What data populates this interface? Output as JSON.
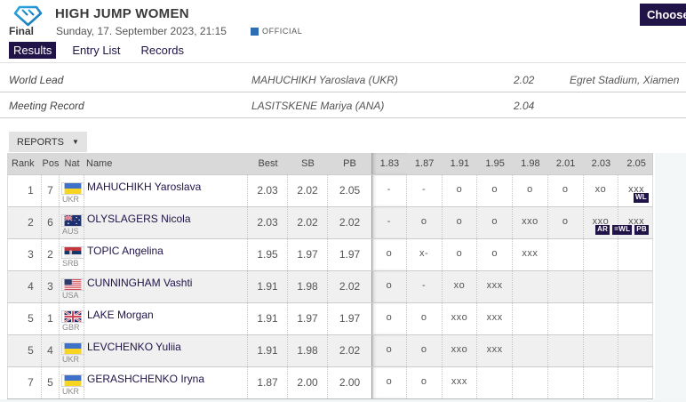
{
  "colors": {
    "brand_navy": "#201347",
    "official_blue": "#2e6db4",
    "logo_blue_light": "#2aa9e0",
    "logo_blue_dark": "#1d71b8"
  },
  "header": {
    "title": "HIGH JUMP WOMEN",
    "round": "Final",
    "datetime": "Sunday, 17. September 2023, 21:15",
    "official_label": "OFFICIAL",
    "choose_button": "Choose",
    "tabs": [
      {
        "label": "Results",
        "active": true
      },
      {
        "label": "Entry List",
        "active": false
      },
      {
        "label": "Records",
        "active": false
      }
    ]
  },
  "records": [
    {
      "label": "World Lead",
      "athlete": "MAHUCHIKH Yaroslava (UKR)",
      "mark": "2.02",
      "venue": "Egret Stadium, Xiamen"
    },
    {
      "label": "Meeting Record",
      "athlete": "LASITSKENE Mariya (ANA)",
      "mark": "2.04",
      "venue": ""
    }
  ],
  "reports": {
    "label": "REPORTS"
  },
  "table": {
    "columns": [
      "Rank",
      "Pos",
      "Nat",
      "Name",
      "Best",
      "SB",
      "PB"
    ],
    "heights": [
      "1.83",
      "1.87",
      "1.91",
      "1.95",
      "1.98",
      "2.01",
      "2.03",
      "2.05"
    ],
    "rows": [
      {
        "rank": "1",
        "pos": "7",
        "nat": "UKR",
        "name": "MAHUCHIKH Yaroslava",
        "badges": [
          "WL"
        ],
        "best": "2.03",
        "sb": "2.02",
        "pb": "2.05",
        "attempts": [
          "-",
          "-",
          "o",
          "o",
          "o",
          "o",
          "xo",
          "xxx"
        ]
      },
      {
        "rank": "2",
        "pos": "6",
        "nat": "AUS",
        "name": "OLYSLAGERS Nicola",
        "badges": [
          "AR",
          "=WL",
          "PB"
        ],
        "best": "2.03",
        "sb": "2.02",
        "pb": "2.02",
        "attempts": [
          "-",
          "o",
          "o",
          "o",
          "xxo",
          "o",
          "xxo",
          "xxx"
        ]
      },
      {
        "rank": "3",
        "pos": "2",
        "nat": "SRB",
        "name": "TOPIC Angelina",
        "badges": [],
        "best": "1.95",
        "sb": "1.97",
        "pb": "1.97",
        "attempts": [
          "o",
          "x-",
          "o",
          "o",
          "xxx",
          "",
          "",
          ""
        ]
      },
      {
        "rank": "4",
        "pos": "3",
        "nat": "USA",
        "name": "CUNNINGHAM Vashti",
        "badges": [],
        "best": "1.91",
        "sb": "1.98",
        "pb": "2.02",
        "attempts": [
          "o",
          "-",
          "xo",
          "xxx",
          "",
          "",
          "",
          ""
        ]
      },
      {
        "rank": "5",
        "pos": "1",
        "nat": "GBR",
        "name": "LAKE Morgan",
        "badges": [],
        "best": "1.91",
        "sb": "1.97",
        "pb": "1.97",
        "attempts": [
          "o",
          "o",
          "xxo",
          "xxx",
          "",
          "",
          "",
          ""
        ]
      },
      {
        "rank": "5",
        "pos": "4",
        "nat": "UKR",
        "name": "LEVCHENKO Yuliia",
        "badges": [],
        "best": "1.91",
        "sb": "1.98",
        "pb": "2.02",
        "attempts": [
          "o",
          "o",
          "xxo",
          "xxx",
          "",
          "",
          "",
          ""
        ]
      },
      {
        "rank": "7",
        "pos": "5",
        "nat": "UKR",
        "name": "GERASHCHENKO Iryna",
        "badges": [],
        "best": "1.87",
        "sb": "2.00",
        "pb": "2.00",
        "attempts": [
          "o",
          "o",
          "xxx",
          "",
          "",
          "",
          "",
          ""
        ]
      }
    ]
  }
}
